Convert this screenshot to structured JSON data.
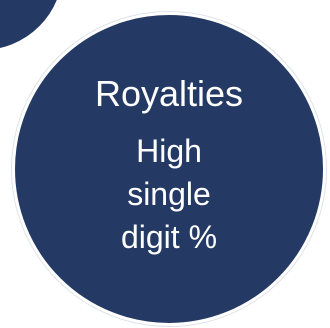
{
  "circle": {
    "title": "Royalties",
    "lines": [
      "High",
      "single",
      "digit %"
    ]
  },
  "colors": {
    "circle_fill": "#243a65",
    "text": "#ffffff",
    "outline": "#ffffff"
  }
}
